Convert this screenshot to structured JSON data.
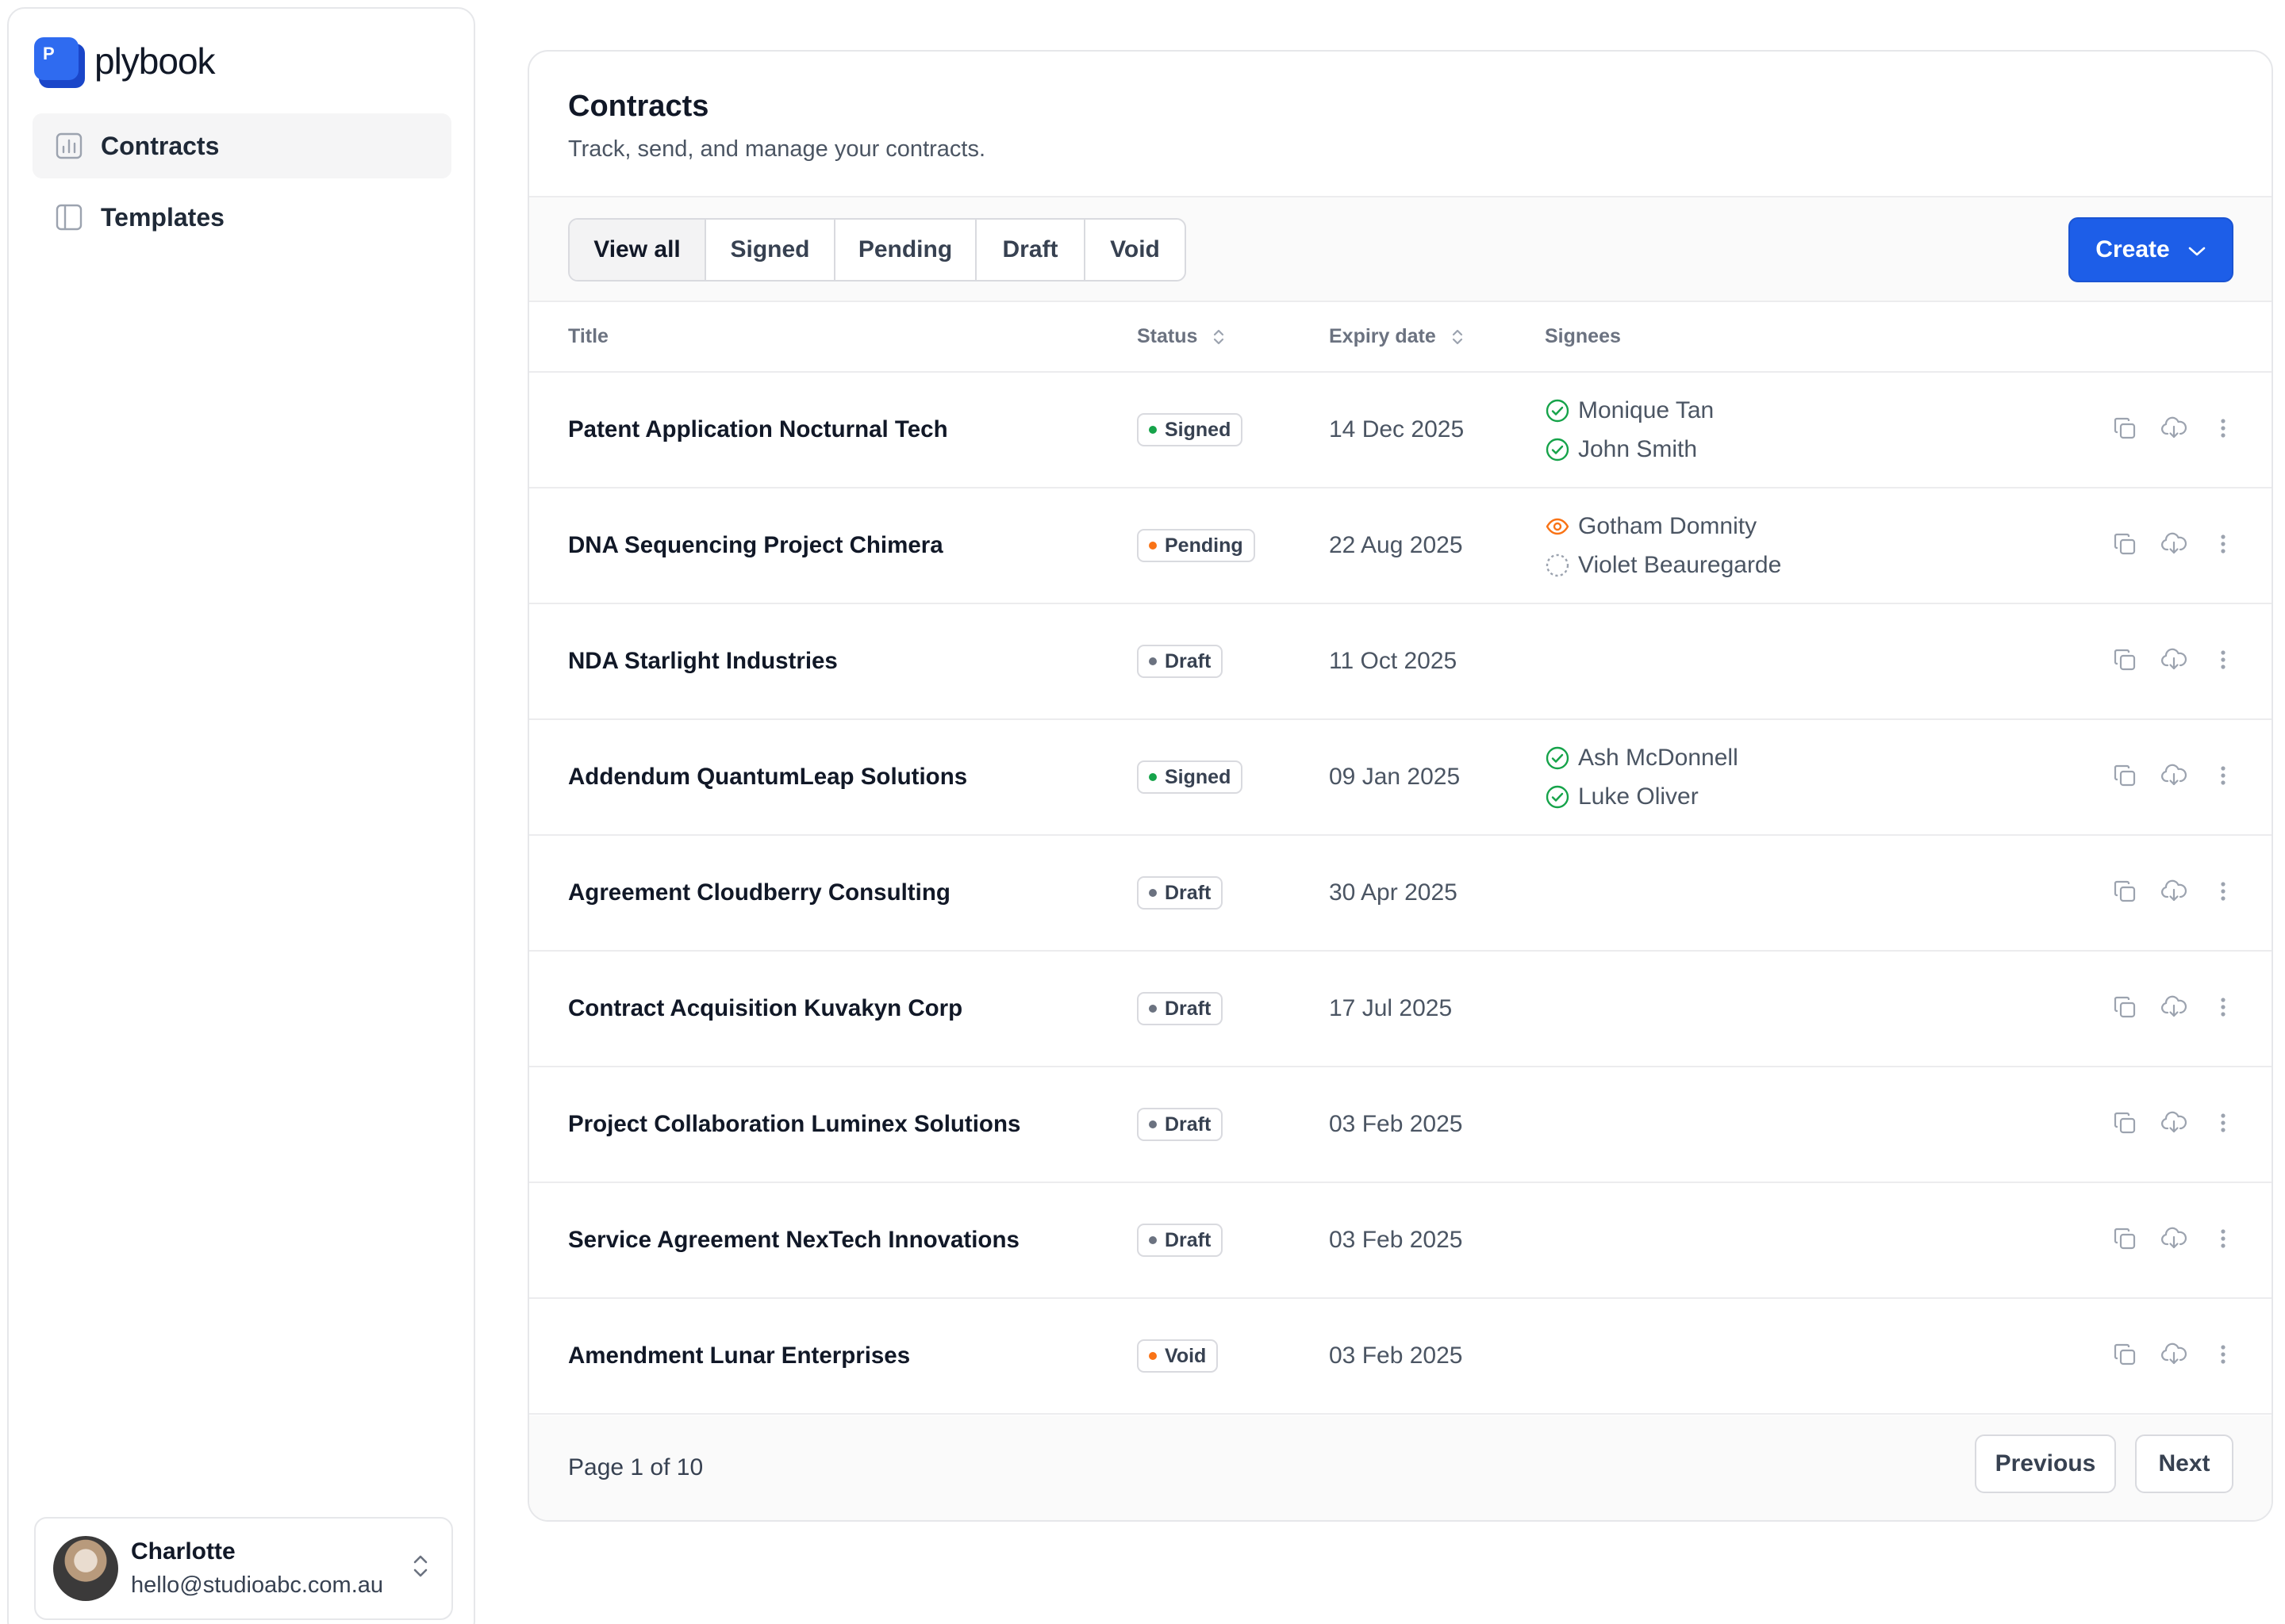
{
  "app": {
    "name": "plybook",
    "logo_letter": "P"
  },
  "sidebar": {
    "items": [
      {
        "label": "Contracts",
        "icon": "chart-icon",
        "active": true
      },
      {
        "label": "Templates",
        "icon": "layout-icon",
        "active": false
      }
    ]
  },
  "user": {
    "name": "Charlotte",
    "email": "hello@studioabc.com.au"
  },
  "page": {
    "title": "Contracts",
    "subtitle": "Track, send, and manage your contracts."
  },
  "filters": [
    "View all",
    "Signed",
    "Pending",
    "Draft",
    "Void"
  ],
  "active_filter": "View all",
  "create_label": "Create",
  "table": {
    "headers": {
      "title": "Title",
      "status": "Status",
      "expiry": "Expiry date",
      "signees": "Signees"
    },
    "rows": [
      {
        "title": "Patent Application Nocturnal Tech",
        "status": "Signed",
        "expiry": "14 Dec 2025",
        "signees": [
          {
            "name": "Monique Tan",
            "state": "signed"
          },
          {
            "name": "John Smith",
            "state": "signed"
          }
        ]
      },
      {
        "title": "DNA Sequencing Project Chimera",
        "status": "Pending",
        "expiry": "22 Aug 2025",
        "signees": [
          {
            "name": "Gotham Domnity",
            "state": "viewed"
          },
          {
            "name": "Violet Beauregarde",
            "state": "waiting"
          }
        ]
      },
      {
        "title": "NDA Starlight Industries",
        "status": "Draft",
        "expiry": "11 Oct 2025",
        "signees": []
      },
      {
        "title": "Addendum QuantumLeap Solutions",
        "status": "Signed",
        "expiry": "09 Jan 2025",
        "signees": [
          {
            "name": "Ash McDonnell",
            "state": "signed"
          },
          {
            "name": "Luke Oliver",
            "state": "signed"
          }
        ]
      },
      {
        "title": "Agreement Cloudberry Consulting",
        "status": "Draft",
        "expiry": "30 Apr 2025",
        "signees": []
      },
      {
        "title": "Contract Acquisition Kuvakyn Corp",
        "status": "Draft",
        "expiry": "17 Jul 2025",
        "signees": []
      },
      {
        "title": "Project Collaboration Luminex Solutions",
        "status": "Draft",
        "expiry": "03 Feb 2025",
        "signees": []
      },
      {
        "title": "Service Agreement NexTech Innovations",
        "status": "Draft",
        "expiry": "03 Feb 2025",
        "signees": []
      },
      {
        "title": "Amendment Lunar Enterprises",
        "status": "Void",
        "expiry": "03 Feb 2025",
        "signees": []
      }
    ]
  },
  "status_colors": {
    "Signed": "#16a34a",
    "Pending": "#f97316",
    "Draft": "#6b7280",
    "Void": "#f97316"
  },
  "pagination": {
    "label": "Page 1 of 10",
    "previous": "Previous",
    "next": "Next"
  }
}
